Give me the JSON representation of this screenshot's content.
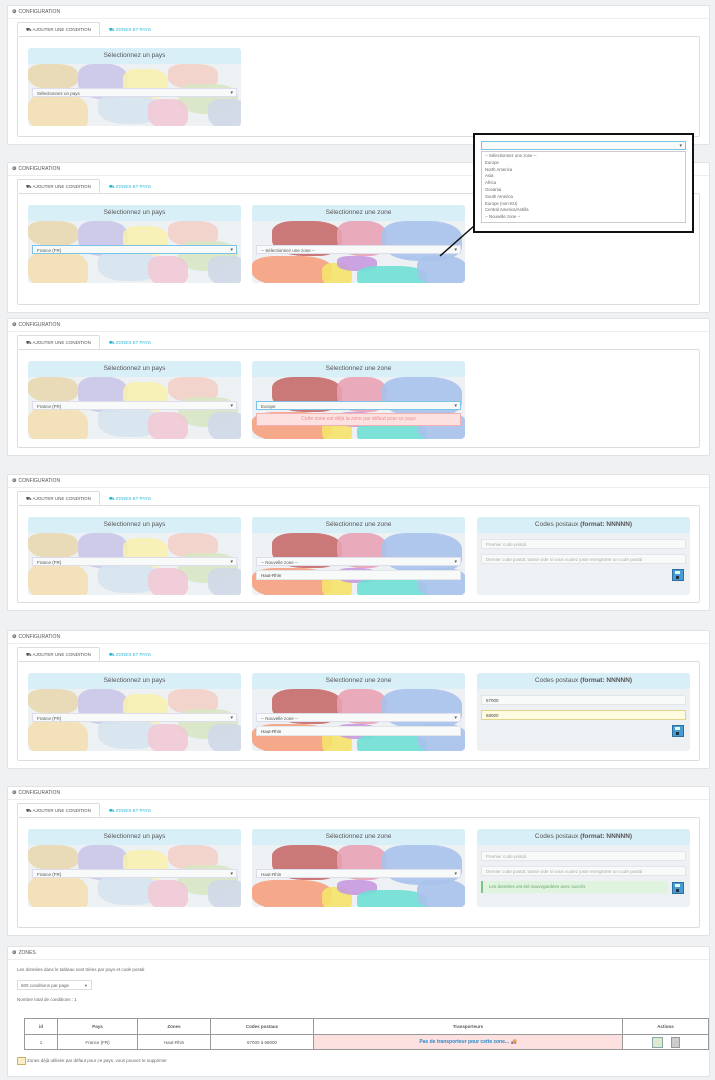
{
  "common": {
    "panel_title": "CONFIGURATION",
    "tab_add": "AJOUTER UNE CONDITION",
    "tab_zones": "ZONES ET PAYS",
    "country_title": "Sélectionnez un pays",
    "zone_title": "Sélectionnez une zone",
    "postal_title": "Codes postaux ",
    "postal_format": "(format: NNNNN)",
    "first_postal_placeholder": "Premier code postal",
    "last_postal_placeholder": "Dernier code postal, laissé vide si vous voulez juste enregistrer un code postal"
  },
  "panels": [
    {
      "country": "Sélectionnez un pays"
    },
    {
      "country": "France (FR)",
      "country_focus": true,
      "zone": "-- Sélectionnez une zone --"
    },
    {
      "country": "France (FR)",
      "zone": "Europe",
      "zone_focus": true,
      "error": "Cette zone est déjà la zone par défaut pour ce pays"
    },
    {
      "country": "France (FR)",
      "zone": "-- Nouvelle zone --",
      "new_zone": "Haut-Rhin",
      "postal": true
    },
    {
      "country": "France (FR)",
      "zone": "-- Nouvelle zone --",
      "new_zone": "Haut-Rhin",
      "postal": true,
      "first_postal": "67000",
      "last_postal": "68000"
    },
    {
      "country": "France (FR)",
      "zone": "Haut-Rhin",
      "postal": true,
      "success": "Les données ont été sauvegardées avec succès"
    }
  ],
  "zone_dropdown": {
    "options": [
      "-- Sélectionnez une zone --",
      "Europe",
      "North America",
      "Asia",
      "Africa",
      "Oceania",
      "South America",
      "Europe (non-EU)",
      "Central America/Antilla",
      "-- Nouvelle zone --"
    ]
  },
  "zones": {
    "title": "ZONES",
    "sort_note": "Les données dans le tableau sont triées par pays et code postal",
    "per_page": "500 conditions par page",
    "total": "Nombre total de conditions : 1",
    "headers": [
      "id",
      "Pays",
      "Zones",
      "Codes postaux",
      "Transporteurs",
      "Actions"
    ],
    "rows": [
      {
        "id": "1",
        "country": "France (FR)",
        "zone": "Haut-Rhin",
        "postal": "67000 à 68000",
        "carrier": "Pas de transporteur pour cette zone... 🚚"
      }
    ],
    "legend": "Zones déjà utilisée par défaut pour ce pays, vous pouvez le supprimer"
  },
  "colors": {
    "accent": "#25b9d7",
    "error_bg": "#fde0e0",
    "success_bg": "#dff3df",
    "card_header": "#d9eff7"
  }
}
